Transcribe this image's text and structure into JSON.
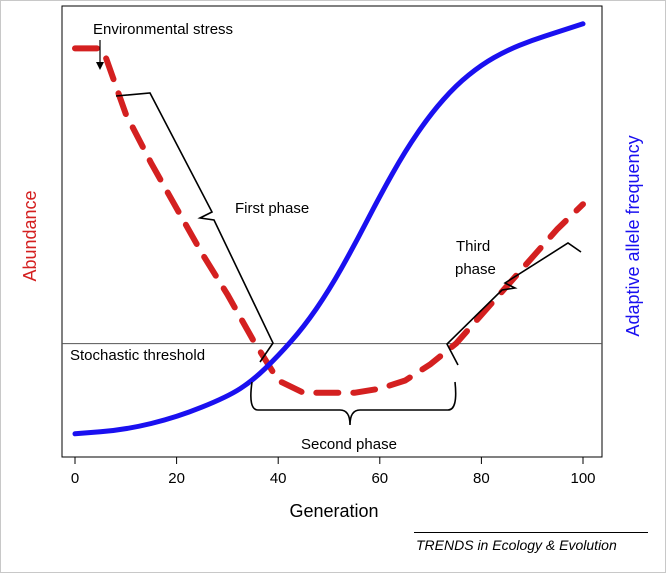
{
  "chart_data": {
    "type": "line",
    "xlabel": "Generation",
    "ylabel_left": "Abundance",
    "ylabel_right": "Adaptive allele frequency",
    "xlim": [
      -3,
      103
    ],
    "x_ticks": [
      0,
      20,
      40,
      60,
      80,
      100
    ],
    "y_ticks_shown": false,
    "grid": false,
    "threshold": {
      "label": "Stochastic threshold",
      "y": 0.24
    },
    "series": [
      {
        "name": "Abundance",
        "color": "#d42020",
        "style": "dashed",
        "x": [
          0,
          5,
          6,
          10,
          15,
          20,
          25,
          30,
          35,
          40,
          45,
          50,
          55,
          60,
          65,
          70,
          75,
          80,
          85,
          90,
          95,
          100
        ],
        "y": [
          0.96,
          0.96,
          0.94,
          0.8,
          0.68,
          0.57,
          0.46,
          0.36,
          0.25,
          0.15,
          0.12,
          0.12,
          0.12,
          0.13,
          0.15,
          0.19,
          0.24,
          0.31,
          0.38,
          0.45,
          0.52,
          0.58
        ]
      },
      {
        "name": "Adaptive allele frequency",
        "color": "#1a10f0",
        "style": "solid",
        "x": [
          0,
          10,
          20,
          30,
          35,
          40,
          45,
          50,
          55,
          60,
          65,
          70,
          75,
          80,
          85,
          90,
          95,
          100
        ],
        "y": [
          0.02,
          0.03,
          0.06,
          0.11,
          0.15,
          0.21,
          0.28,
          0.37,
          0.48,
          0.6,
          0.71,
          0.8,
          0.87,
          0.92,
          0.955,
          0.98,
          1.0,
          1.02
        ]
      }
    ],
    "annotations": [
      {
        "label": "Environmental stress",
        "x": 5
      },
      {
        "label": "First phase",
        "x_range": [
          8,
          39
        ]
      },
      {
        "label": "Second phase",
        "x_range": [
          35,
          75
        ]
      },
      {
        "label": "Third phase",
        "x_range": [
          75,
          100
        ]
      }
    ]
  },
  "footer": {
    "credit": "TRENDS in Ecology & Evolution"
  }
}
